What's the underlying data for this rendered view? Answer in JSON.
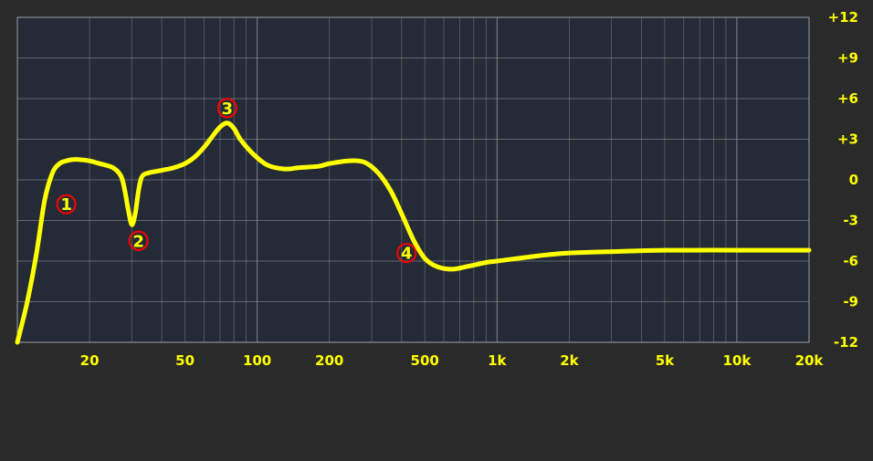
{
  "chart_data": {
    "type": "line",
    "title": "",
    "xlabel": "",
    "ylabel": "",
    "x_scale": "log",
    "xlim": [
      10,
      20000
    ],
    "ylim": [
      -12,
      12
    ],
    "grid": true,
    "colors": {
      "plot_bg": "#252b36",
      "frame_bg": "#2a2a2a",
      "grid": "#8a8f99",
      "curve": "#ffff00",
      "band_marker": "#ff0000",
      "label": "#ffff00"
    },
    "x_ticks": [
      {
        "value": 20,
        "label": "20"
      },
      {
        "value": 50,
        "label": "50"
      },
      {
        "value": 100,
        "label": "100"
      },
      {
        "value": 200,
        "label": "200"
      },
      {
        "value": 500,
        "label": "500"
      },
      {
        "value": 1000,
        "label": "1k"
      },
      {
        "value": 2000,
        "label": "2k"
      },
      {
        "value": 5000,
        "label": "5k"
      },
      {
        "value": 10000,
        "label": "10k"
      },
      {
        "value": 20000,
        "label": "20k"
      }
    ],
    "y_ticks": [
      {
        "value": 12,
        "label": "+12"
      },
      {
        "value": 9,
        "label": "+9"
      },
      {
        "value": 6,
        "label": "+6"
      },
      {
        "value": 3,
        "label": "+3"
      },
      {
        "value": 0,
        "label": "0"
      },
      {
        "value": -3,
        "label": "-3"
      },
      {
        "value": -6,
        "label": "-6"
      },
      {
        "value": -9,
        "label": "-9"
      },
      {
        "value": -12,
        "label": "-12"
      }
    ],
    "series": [
      {
        "points": [
          [
            10,
            -12.0
          ],
          [
            11,
            -9.0
          ],
          [
            12,
            -5.5
          ],
          [
            13,
            -1.5
          ],
          [
            14,
            0.5
          ],
          [
            15,
            1.2
          ],
          [
            16,
            1.4
          ],
          [
            17,
            1.5
          ],
          [
            18,
            1.5
          ],
          [
            20,
            1.4
          ],
          [
            22,
            1.2
          ],
          [
            25,
            0.9
          ],
          [
            27,
            0.3
          ],
          [
            28,
            -0.7
          ],
          [
            29,
            -2.2
          ],
          [
            30,
            -3.3
          ],
          [
            31,
            -2.5
          ],
          [
            32,
            -0.8
          ],
          [
            33,
            0.2
          ],
          [
            35,
            0.5
          ],
          [
            40,
            0.7
          ],
          [
            45,
            0.9
          ],
          [
            50,
            1.2
          ],
          [
            55,
            1.7
          ],
          [
            60,
            2.4
          ],
          [
            65,
            3.2
          ],
          [
            70,
            3.9
          ],
          [
            75,
            4.2
          ],
          [
            80,
            3.8
          ],
          [
            85,
            3.0
          ],
          [
            95,
            2.0
          ],
          [
            110,
            1.1
          ],
          [
            130,
            0.8
          ],
          [
            150,
            0.9
          ],
          [
            180,
            1.0
          ],
          [
            200,
            1.2
          ],
          [
            240,
            1.4
          ],
          [
            280,
            1.3
          ],
          [
            320,
            0.5
          ],
          [
            360,
            -0.8
          ],
          [
            400,
            -2.5
          ],
          [
            450,
            -4.5
          ],
          [
            500,
            -5.8
          ],
          [
            560,
            -6.4
          ],
          [
            650,
            -6.6
          ],
          [
            750,
            -6.4
          ],
          [
            900,
            -6.1
          ],
          [
            1000,
            -6.0
          ],
          [
            1500,
            -5.6
          ],
          [
            2000,
            -5.4
          ],
          [
            3000,
            -5.3
          ],
          [
            5000,
            -5.2
          ],
          [
            10000,
            -5.2
          ],
          [
            20000,
            -5.2
          ]
        ]
      }
    ],
    "bands": [
      {
        "label": "1",
        "freq": 16,
        "gain": -1.8
      },
      {
        "label": "2",
        "freq": 32,
        "gain": -4.5
      },
      {
        "label": "3",
        "freq": 75,
        "gain": 5.3
      },
      {
        "label": "4",
        "freq": 420,
        "gain": -5.4
      }
    ]
  }
}
